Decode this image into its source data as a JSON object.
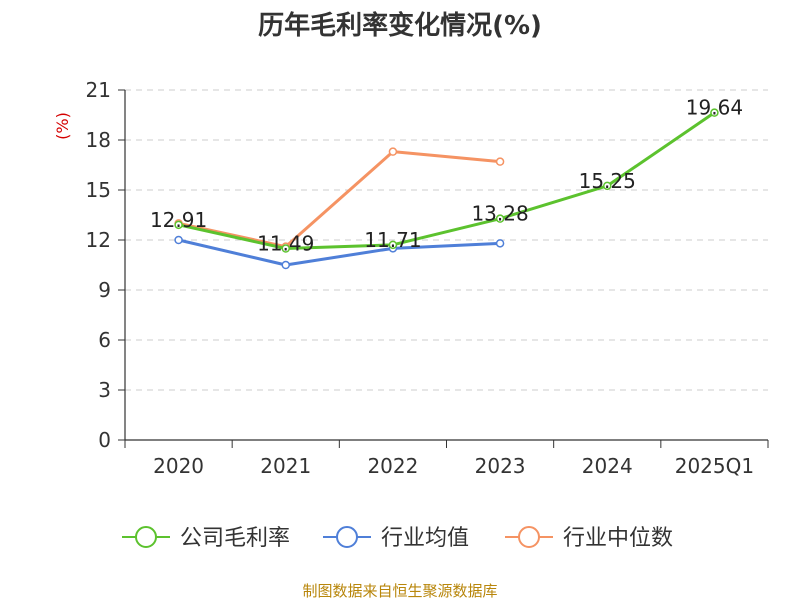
{
  "chart_data": {
    "type": "line",
    "title": "历年毛利率变化情况(%)",
    "ylabel": "(%)",
    "categories": [
      "2020",
      "2021",
      "2022",
      "2023",
      "2024",
      "2025Q1"
    ],
    "ylim": [
      0,
      21
    ],
    "yticks": [
      0,
      3,
      6,
      9,
      12,
      15,
      18,
      21
    ],
    "grid": true,
    "legend_position": "bottom",
    "series": [
      {
        "name": "公司毛利率",
        "color": "#5cc22e",
        "values": [
          12.91,
          11.49,
          11.71,
          13.28,
          15.25,
          19.64
        ],
        "labels": [
          "12.91",
          "11.49",
          "11.71",
          "13.28",
          "15.25",
          "19.64"
        ]
      },
      {
        "name": "行业均值",
        "color": "#4f7fd8",
        "values": [
          12.0,
          10.5,
          11.5,
          11.8,
          null,
          null
        ]
      },
      {
        "name": "行业中位数",
        "color": "#f59363",
        "values": [
          13.0,
          11.6,
          17.3,
          16.7,
          null,
          null
        ]
      }
    ],
    "source": "制图数据来自恒生聚源数据库"
  }
}
